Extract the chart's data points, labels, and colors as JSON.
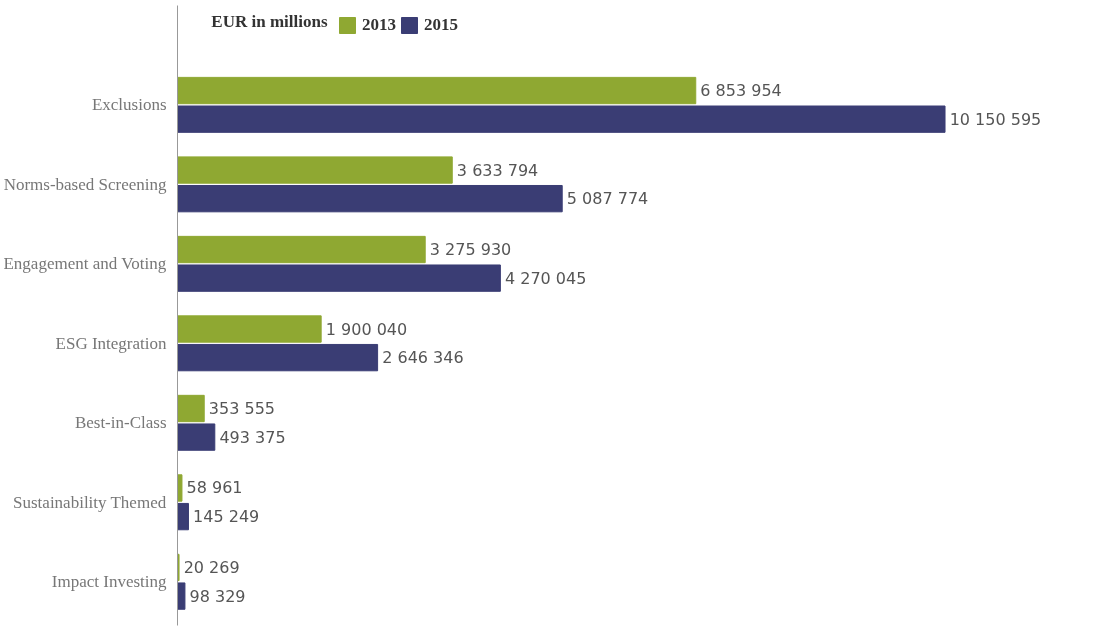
{
  "chart_data": {
    "type": "bar",
    "orientation": "horizontal",
    "legend_title": "EUR in millions",
    "legend": "top",
    "data_labels": true,
    "grid": false,
    "categories": [
      "Exclusions",
      "Norms-based Screening",
      "Engagement and Voting",
      "ESG Integration",
      "Best-in-Class",
      "Sustainability Themed",
      "Impact Investing"
    ],
    "series": [
      {
        "name": "2013",
        "color": "#8fa832",
        "values": [
          6853954,
          3633794,
          3275930,
          1900040,
          353555,
          58961,
          20269
        ]
      },
      {
        "name": "2015",
        "color": "#3a3d74",
        "values": [
          10150595,
          5087774,
          4270045,
          2646346,
          493375,
          145249,
          98329
        ]
      }
    ]
  }
}
